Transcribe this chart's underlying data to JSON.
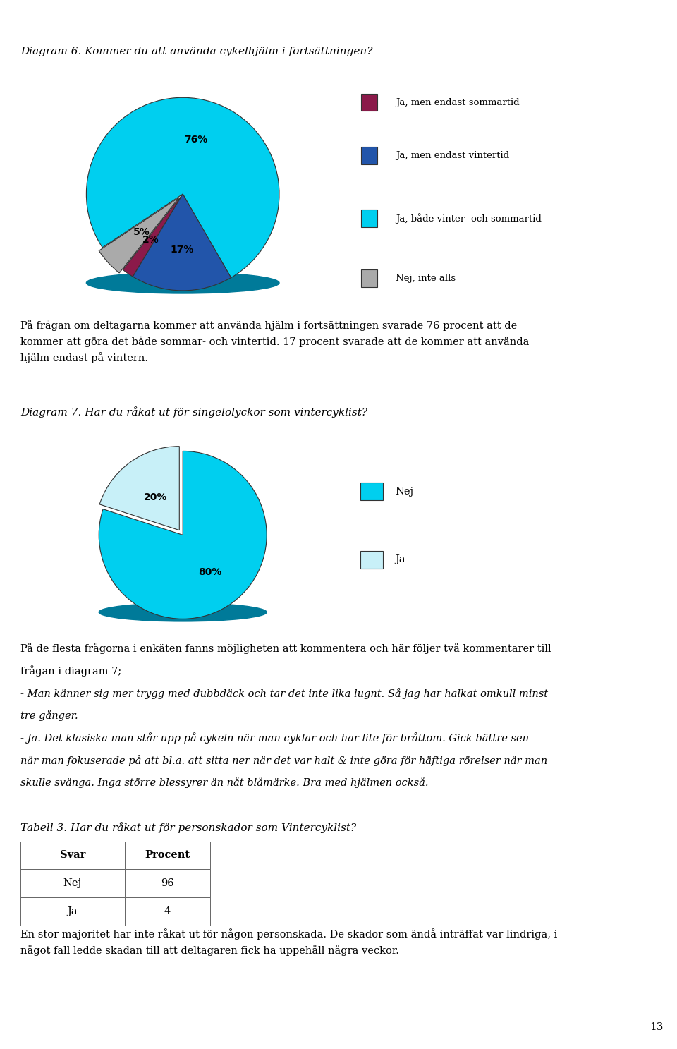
{
  "page_title": "Diagram 6. Kommer du att använda cykelhjälm i fortsättningen?",
  "pie1": {
    "values": [
      76,
      5,
      2,
      17
    ],
    "labels": [
      "76%",
      "5%",
      "2%",
      "17%"
    ],
    "colors": [
      "#00CFEF",
      "#AAAAAA",
      "#8B1A4A",
      "#2255AA"
    ],
    "shadow_color": "#007A99",
    "legend_labels": [
      "Ja, men endast sommartid",
      "Ja, men endast vintertid",
      "Ja, både vinter- och sommartid",
      "Nej, inte alls"
    ],
    "legend_colors": [
      "#8B1A4A",
      "#2255AA",
      "#00CFEF",
      "#AAAAAA"
    ],
    "startangle": -60,
    "explode": [
      0.0,
      0.05,
      0.0,
      0.0
    ]
  },
  "text1_line1": "På frågan om deltagarna kommer att använda hjälm i fortsättningen svarade 76 procent att de",
  "text1_line2": "kommer att göra det både sommar- och vintertid. 17 procent svarade att de kommer att använda",
  "text1_line3": "hjälm endast på vintern.",
  "diagram7_title": "Diagram 7. Har du råkat ut för singelolyckor som vintercyklist?",
  "pie2": {
    "values": [
      80,
      20
    ],
    "labels": [
      "80%",
      "20%"
    ],
    "colors": [
      "#00CFEF",
      "#C8F0F8"
    ],
    "shadow_color": "#007A99",
    "legend_labels": [
      "Nej",
      "Ja"
    ],
    "startangle": 162,
    "explode": [
      0.0,
      0.07
    ]
  },
  "text2_lines": [
    "På de flesta frågorna i enkäten fanns möjligheten att kommentera och här följer två kommentarer till",
    "frågan i diagram 7;",
    "- Man känner sig mer trygg med dubbdäck och tar det inte lika lugnt. Så jag har halkat omkull minst",
    "tre gånger.",
    "- Ja. Det klasiska man står upp på cykeln när man cyklar och har lite för bråttom. Gick bättre sen",
    "när man fokuserade på att bl.a. att sitta ner när det var halt & inte göra för häftiga rörelser när man",
    "skulle svänga. Inga större blessyrer än nåt blåmärke. Bra med hjälmen också."
  ],
  "text2_italic_lines": [
    2,
    3,
    4,
    5,
    6
  ],
  "table_title": "Tabell 3. Har du råkat ut för personskador som Vintercyklist?",
  "table_headers": [
    "Svar",
    "Procent"
  ],
  "table_data": [
    [
      "Nej",
      "96"
    ],
    [
      "Ja",
      "4"
    ]
  ],
  "text3_lines": [
    "En stor majoritet har inte råkat ut för någon personskada. De skador som ändå inträffat var lindriga, i",
    "något fall ledde skadan till att deltagaren fick ha uppehåll några veckor."
  ],
  "page_number": "13",
  "bg_color": "#FFFFFF"
}
